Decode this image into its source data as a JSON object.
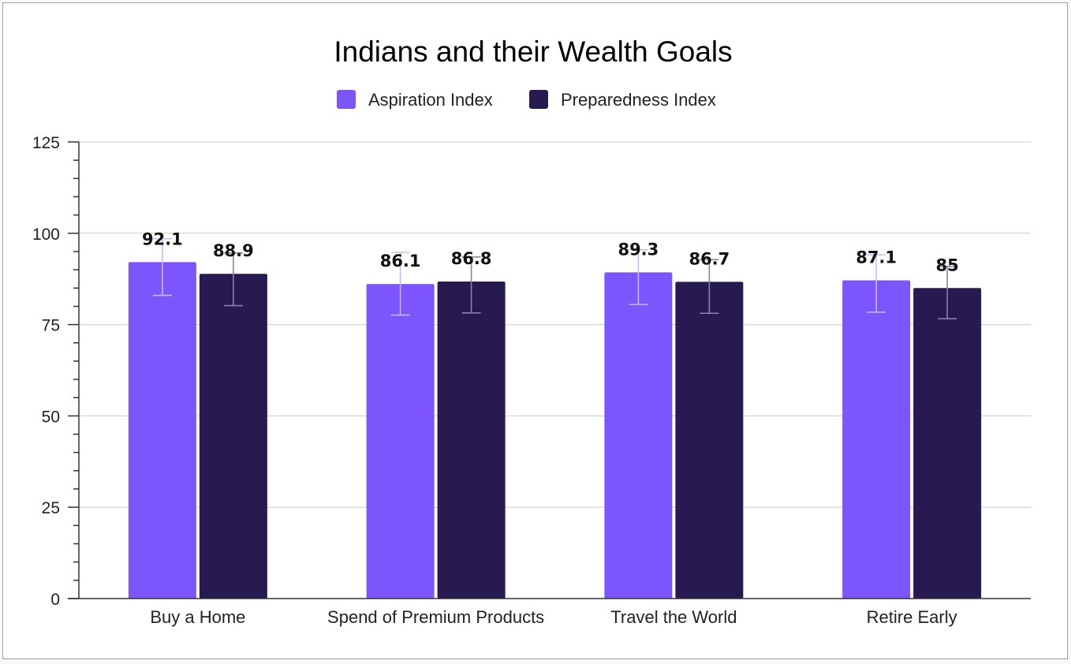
{
  "chart_data": {
    "type": "bar",
    "title": "Indians and their Wealth Goals",
    "xlabel": "",
    "ylabel": "",
    "ylim": [
      0,
      125
    ],
    "yticks": [
      0,
      25,
      50,
      75,
      100,
      125
    ],
    "grid": true,
    "legend_position": "top",
    "categories": [
      "Buy a Home",
      "Spend of Premium Products",
      "Travel the World",
      "Retire Early"
    ],
    "series": [
      {
        "name": "Aspiration Index",
        "color": "#7c55fd",
        "error_bar_color": "#c9b8ff",
        "values": [
          92.1,
          86.1,
          89.3,
          87.1
        ],
        "error_low": [
          83.0,
          77.6,
          80.5,
          78.4
        ],
        "error_high": [
          98.5,
          94.8,
          95.5,
          94.1
        ]
      },
      {
        "name": "Preparedness Index",
        "color": "#261a50",
        "error_bar_color": "#8a82a6",
        "values": [
          88.9,
          86.8,
          86.7,
          85
        ],
        "error_low": [
          80.2,
          78.2,
          78.1,
          76.6
        ],
        "error_high": [
          94.6,
          93.5,
          92.8,
          90.9
        ]
      }
    ]
  }
}
